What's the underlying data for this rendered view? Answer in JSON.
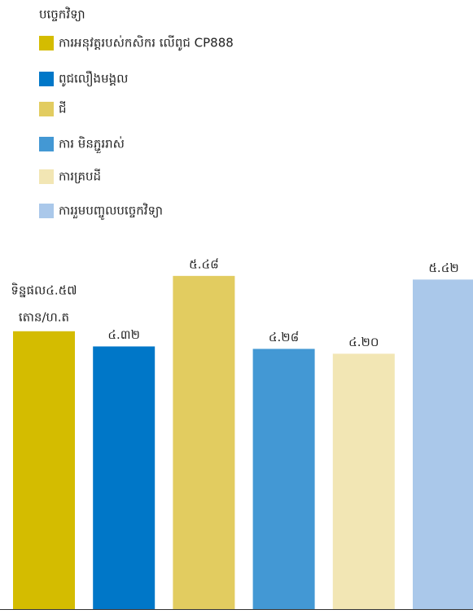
{
  "chart_data": {
    "type": "bar",
    "legend_title": "បច្ចេកវិទ្យា",
    "categories": [
      "ការអនុវត្តរបស់កសិករ លើពូជ CP888",
      "ពូជលឿងមង្គល",
      "ជី",
      "ការ មិនភ្ជួររាស់",
      "ការគ្របដី",
      "ការរួមបញ្ចូលបច្ចេកវិទ្យា"
    ],
    "values": [
      4.57,
      4.32,
      5.48,
      4.28,
      4.2,
      5.42
    ],
    "value_labels": [
      "ទិន្នផល៤.៥៧",
      "៤.៣២",
      "៥.៤៨",
      "៤.២៨",
      "៤.២០",
      "៥.៤២"
    ],
    "unit_label": "តោន/ហ.ត",
    "colors": [
      "#d4bc00",
      "#0077c8",
      "#e2cc60",
      "#4398d4",
      "#f2e6b4",
      "#aac8ea"
    ],
    "ylim": [
      0,
      6
    ]
  }
}
